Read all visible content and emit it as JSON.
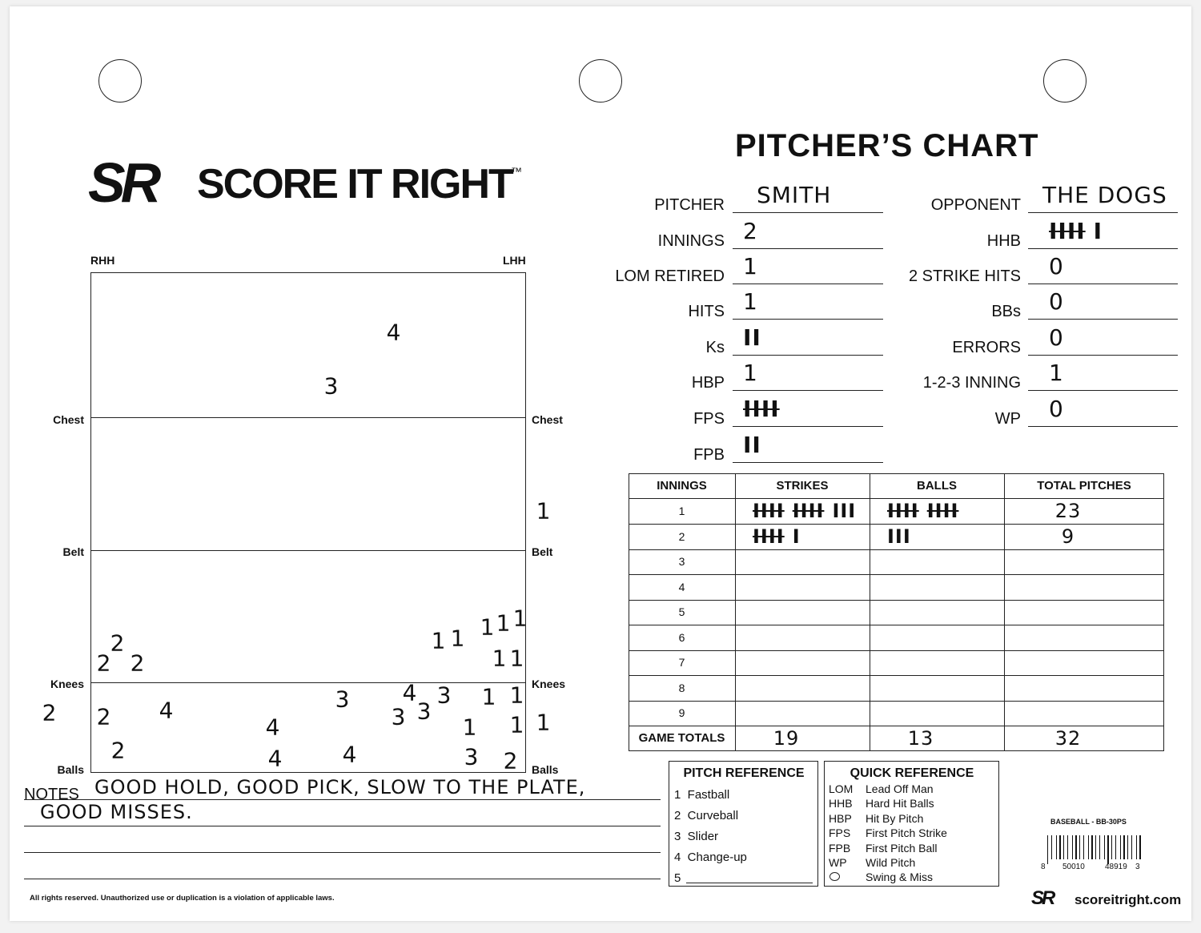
{
  "brand": {
    "logo": "SR",
    "name": "SCORE IT RIGHT",
    "tm": "™"
  },
  "title": "PITCHER’S CHART",
  "fields_left": [
    {
      "label": "PITCHER",
      "value": "SMITH"
    },
    {
      "label": "INNINGS",
      "value": "2"
    },
    {
      "label": "LOM RETIRED",
      "value": "1"
    },
    {
      "label": "HITS",
      "value": "1"
    },
    {
      "label": "Ks",
      "value": [
        "II"
      ]
    },
    {
      "label": "HBP",
      "value": "1"
    },
    {
      "label": "FPS",
      "value": [
        "IIII"
      ]
    },
    {
      "label": "FPB",
      "value": [
        "II"
      ]
    }
  ],
  "fields_right": [
    {
      "label": "OPPONENT",
      "value": "THE DOGS"
    },
    {
      "label": "HHB",
      "value": [
        "IIII",
        "I"
      ]
    },
    {
      "label": "2 STRIKE HITS",
      "value": "0"
    },
    {
      "label": "BBs",
      "value": "0"
    },
    {
      "label": "ERRORS",
      "value": "0"
    },
    {
      "label": "1-2-3 INNING",
      "value": "1"
    },
    {
      "label": "WP",
      "value": "0"
    }
  ],
  "zone": {
    "labels": {
      "rhh": "RHH",
      "lhh": "LHH",
      "chest_l": "Chest",
      "chest_r": "Chest",
      "belt_l": "Belt",
      "belt_r": "Belt",
      "knees_l": "Knees",
      "knees_r": "Knees",
      "balls_l": "Balls",
      "balls_r": "Balls"
    },
    "marks": [
      "4",
      "3",
      "1",
      "2",
      "2",
      "2",
      "1",
      "1",
      "1",
      "1",
      "1",
      "1",
      "1",
      "2",
      "2",
      "4",
      "2",
      "4",
      "4",
      "4",
      "3",
      "4",
      "3",
      "3",
      "3",
      "1",
      "1",
      "1",
      "1",
      "1",
      "3",
      "2"
    ]
  },
  "notes": {
    "label": "NOTES",
    "lines": [
      "GOOD HOLD, GOOD PICK, SLOW TO THE PLATE,",
      "GOOD MISSES."
    ]
  },
  "table": {
    "header": [
      "INNINGS",
      "STRIKES",
      "BALLS",
      "TOTAL PITCHES"
    ],
    "rows": [
      [
        "1",
        [
          "IIII",
          "IIII",
          "III"
        ],
        [
          "IIII",
          "IIII"
        ],
        "23"
      ],
      [
        "2",
        [
          "IIII",
          "I"
        ],
        [
          "III"
        ],
        "9"
      ],
      [
        "3"
      ],
      [
        "4"
      ],
      [
        "5"
      ],
      [
        "6"
      ],
      [
        "7"
      ],
      [
        "8"
      ],
      [
        "9"
      ]
    ],
    "totals": [
      "GAME TOTALS",
      "19",
      "13",
      "32"
    ]
  },
  "pitch_reference": {
    "title": "PITCH REFERENCE",
    "items": [
      "1  Fastball",
      "2  Curveball",
      "3  Slider",
      "4  Change-up",
      "5"
    ]
  },
  "quick_reference": {
    "title": "QUICK REFERENCE",
    "items": [
      {
        "abbr": "LOM",
        "text": "Lead Off Man"
      },
      {
        "abbr": "HHB",
        "text": "Hard Hit Balls"
      },
      {
        "abbr": "HBP",
        "text": "Hit By Pitch"
      },
      {
        "abbr": "FPS",
        "text": "First Pitch Strike"
      },
      {
        "abbr": "FPB",
        "text": "First Pitch Ball"
      },
      {
        "abbr": "WP",
        "text": "Wild Pitch"
      },
      {
        "text": "Swing & Miss"
      }
    ]
  },
  "footer": {
    "rights": "All rights reserved.  Unauthorized use or duplication is a violation of applicable laws.",
    "product": "BASEBALL - BB-30PS",
    "barcode": [
      "8",
      "50010",
      "48919",
      "3"
    ],
    "logo": "SR",
    "site": "scoreitright.com"
  }
}
